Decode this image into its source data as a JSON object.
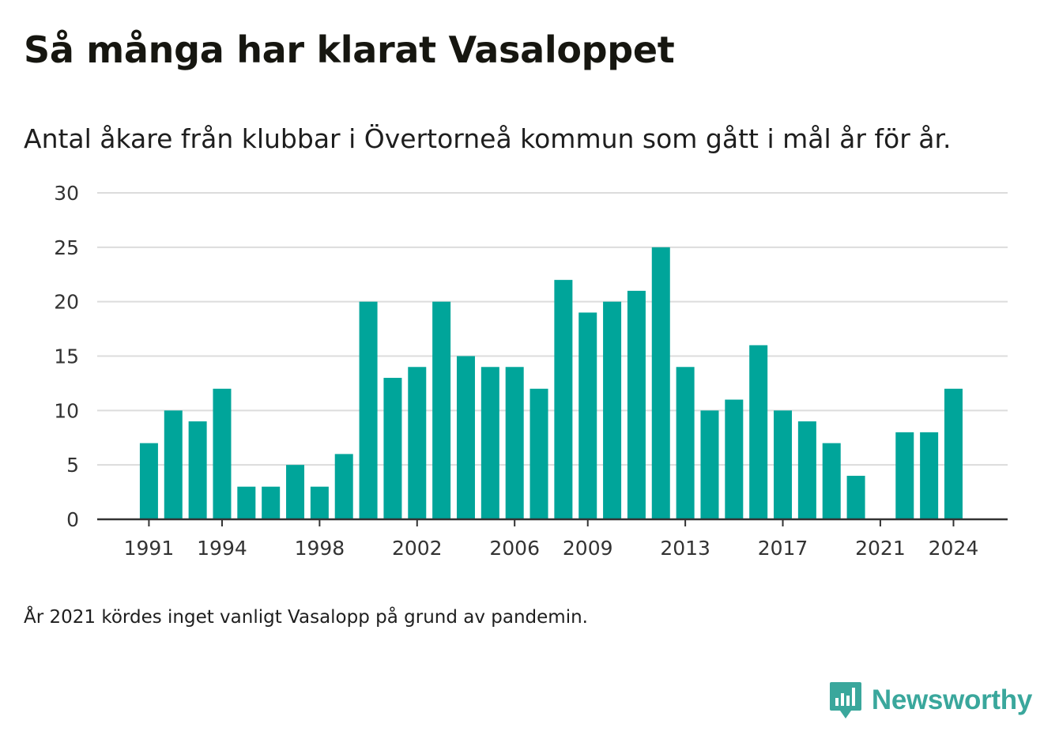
{
  "title": "Så många har klarat Vasaloppet",
  "subtitle": "Antal åkare från klubbar i Övertorneå kommun som gått i mål år för år.",
  "footnote": "År 2021 kördes inget vanligt Vasalopp på grund av pandemin.",
  "brand": {
    "name": "Newsworthy",
    "icon": "newsworthy-logo-icon",
    "color": "#3aa79c"
  },
  "chart_data": {
    "type": "bar",
    "title": "Så många har klarat Vasaloppet",
    "bar_color": "#00a59a",
    "x": [
      1991,
      1992,
      1993,
      1994,
      1995,
      1996,
      1997,
      1998,
      1999,
      2000,
      2001,
      2002,
      2003,
      2004,
      2005,
      2006,
      2007,
      2008,
      2009,
      2010,
      2011,
      2012,
      2013,
      2014,
      2015,
      2016,
      2017,
      2018,
      2019,
      2020,
      2021,
      2022,
      2023,
      2024
    ],
    "values": [
      7,
      10,
      9,
      12,
      3,
      3,
      5,
      3,
      6,
      20,
      13,
      14,
      20,
      15,
      14,
      14,
      12,
      22,
      19,
      20,
      21,
      25,
      14,
      10,
      11,
      16,
      10,
      9,
      7,
      4,
      0,
      8,
      8,
      12
    ],
    "x_ticks": [
      "1991",
      "1994",
      "1998",
      "2002",
      "2006",
      "2009",
      "2013",
      "2017",
      "2021",
      "2024"
    ],
    "y_ticks": [
      "0",
      "5",
      "10",
      "15",
      "20",
      "25",
      "30"
    ],
    "ylim": [
      0,
      30
    ],
    "grid": true,
    "xlabel": "",
    "ylabel": ""
  }
}
